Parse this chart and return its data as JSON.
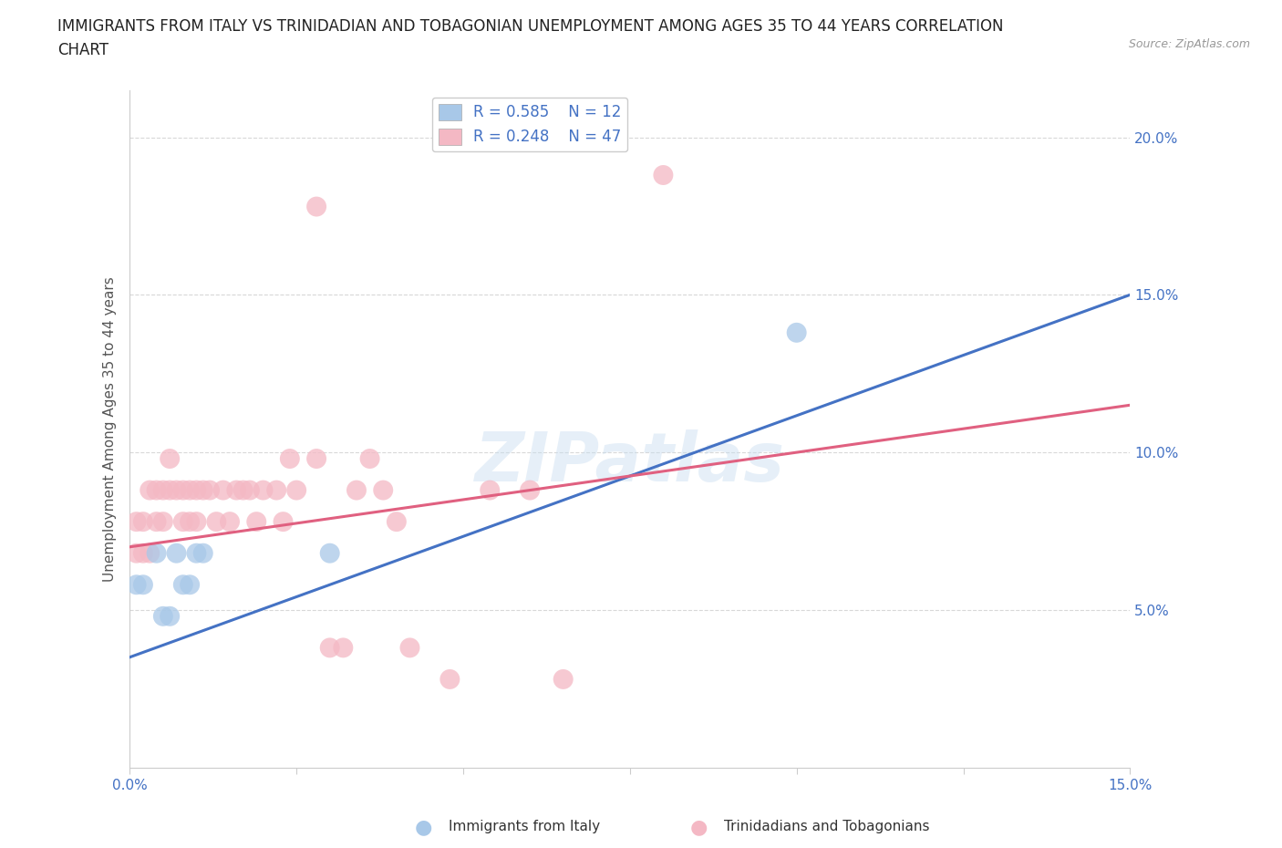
{
  "title_line1": "IMMIGRANTS FROM ITALY VS TRINIDADIAN AND TOBAGONIAN UNEMPLOYMENT AMONG AGES 35 TO 44 YEARS CORRELATION",
  "title_line2": "CHART",
  "source_text": "Source: ZipAtlas.com",
  "ylabel": "Unemployment Among Ages 35 to 44 years",
  "xlim": [
    0.0,
    0.15
  ],
  "ylim": [
    0.0,
    0.215
  ],
  "xtick_positions": [
    0.0,
    0.025,
    0.05,
    0.075,
    0.1,
    0.125,
    0.15
  ],
  "xtick_labels": [
    "0.0%",
    "",
    "",
    "",
    "",
    "",
    "15.0%"
  ],
  "ytick_positions": [
    0.05,
    0.1,
    0.15,
    0.2
  ],
  "ytick_labels": [
    "5.0%",
    "10.0%",
    "15.0%",
    "20.0%"
  ],
  "italy_color": "#a8c8e8",
  "trini_color": "#f4b8c4",
  "italy_line_color": "#4472c4",
  "trini_line_color": "#e06080",
  "legend_italy_text": "R = 0.585    N = 12",
  "legend_trini_text": "R = 0.248    N = 47",
  "italy_label": "Immigrants from Italy",
  "trini_label": "Trinidadians and Tobagonians",
  "watermark": "ZIPatlas",
  "grid_color": "#d8d8d8",
  "background_color": "#ffffff",
  "italy_x": [
    0.001,
    0.002,
    0.004,
    0.005,
    0.006,
    0.007,
    0.008,
    0.009,
    0.01,
    0.011,
    0.03,
    0.1
  ],
  "italy_y": [
    0.058,
    0.058,
    0.068,
    0.048,
    0.048,
    0.068,
    0.058,
    0.058,
    0.068,
    0.068,
    0.068,
    0.138
  ],
  "trini_x": [
    0.001,
    0.001,
    0.002,
    0.002,
    0.003,
    0.003,
    0.004,
    0.004,
    0.005,
    0.005,
    0.006,
    0.006,
    0.007,
    0.008,
    0.008,
    0.009,
    0.009,
    0.01,
    0.01,
    0.011,
    0.012,
    0.013,
    0.014,
    0.015,
    0.016,
    0.017,
    0.018,
    0.019,
    0.02,
    0.022,
    0.023,
    0.024,
    0.025,
    0.028,
    0.03,
    0.032,
    0.034,
    0.036,
    0.038,
    0.04,
    0.042,
    0.048,
    0.054,
    0.06,
    0.065,
    0.08,
    0.028
  ],
  "trini_y": [
    0.068,
    0.078,
    0.068,
    0.078,
    0.088,
    0.068,
    0.078,
    0.088,
    0.078,
    0.088,
    0.088,
    0.098,
    0.088,
    0.078,
    0.088,
    0.078,
    0.088,
    0.078,
    0.088,
    0.088,
    0.088,
    0.078,
    0.088,
    0.078,
    0.088,
    0.088,
    0.088,
    0.078,
    0.088,
    0.088,
    0.078,
    0.098,
    0.088,
    0.098,
    0.038,
    0.038,
    0.088,
    0.098,
    0.088,
    0.078,
    0.038,
    0.028,
    0.088,
    0.088,
    0.028,
    0.188,
    0.178
  ]
}
